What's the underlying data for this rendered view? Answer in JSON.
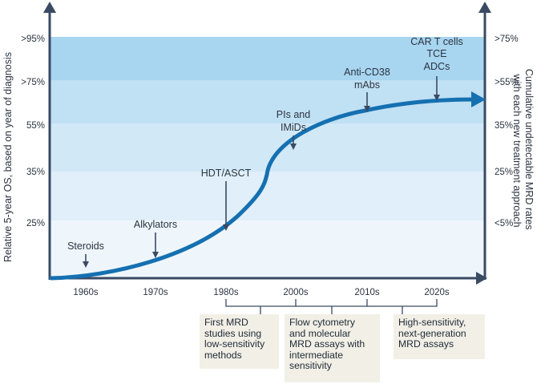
{
  "y_left_label": "Relative 5-year OS, based on year of diagnosis",
  "y_right_label": "Cumulative undetectable MRD rates with each new treatment approach",
  "left_ticks": [
    "25%",
    "35%",
    "55%",
    ">75%",
    ">95%"
  ],
  "right_ticks": [
    "<5%",
    "25%",
    "35%",
    ">55%",
    ">75%"
  ],
  "x_ticks": [
    "1960s",
    "1970s",
    "1980s",
    "2000s",
    "2010s",
    "2020s"
  ],
  "milestones": [
    {
      "lines": [
        "Steroids"
      ]
    },
    {
      "lines": [
        "Alkylators"
      ]
    },
    {
      "lines": [
        "HDT/ASCT"
      ]
    },
    {
      "lines": [
        "PIs and",
        "IMiDs"
      ]
    },
    {
      "lines": [
        "Anti-CD38",
        "mAbs"
      ]
    },
    {
      "lines": [
        "CAR T cells",
        "TCE",
        "ADCs"
      ]
    }
  ],
  "mrd_notes": [
    {
      "lines": [
        "First MRD",
        "studies using",
        "low-sensitivity",
        "methods"
      ]
    },
    {
      "lines": [
        "Flow cytometry",
        "and molecular",
        "MRD assays with",
        "intermediate",
        "sensitivity"
      ]
    },
    {
      "lines": [
        "High-sensitivity,",
        "next-generation",
        "MRD assays"
      ]
    }
  ],
  "colors": {
    "axis": "#3a4a63",
    "curve": "#1570b0",
    "band_1": "#eef6fc",
    "band_2": "#e0effa",
    "band_3": "#d1e8f7",
    "band_4": "#c0e0f4",
    "band_5": "#a8d5f0",
    "note_bg": "#f1efe6"
  }
}
